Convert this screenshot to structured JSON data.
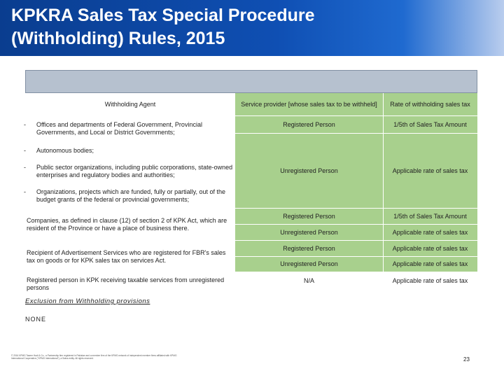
{
  "title": {
    "line1": "KPKRA Sales Tax Special Procedure",
    "line2": "(Withholding) Rules, 2015"
  },
  "table": {
    "headers": {
      "agent": "Withholding Agent",
      "provider": "Service provider [whose sales tax to be withheld]",
      "rate": "Rate of withholding sales tax"
    },
    "bullets": [
      "Offices and departments of Federal Government, Provincial Governments, and Local or District Governments;",
      "Autonomous bodies;",
      "Public sector organizations, including public corporations, state-owned enterprises and regulatory bodies and authorities;",
      "Organizations, projects which are funded, fully or partially, out of the budget grants of the federal or provincial governments;"
    ],
    "bullet_marker": "-",
    "group1": {
      "registered": "Registered Person",
      "registered_rate": "1/5th of Sales Tax Amount",
      "unregistered": "Unregistered Person",
      "unregistered_rate": "Applicable rate of sales tax"
    },
    "companies": {
      "agent": "Companies, as defined in clause (12) of section 2 of KPK Act, which are resident of the Province or have a place of business there.",
      "registered": "Registered Person",
      "registered_rate": "1/5th of Sales Tax Amount",
      "unregistered": "Unregistered Person",
      "unregistered_rate": "Applicable rate of sales tax"
    },
    "advertisement": {
      "agent": "Recipient of Advertisement Services who are registered for FBR's sales tax on goods or for KPK sales tax on services Act.",
      "registered": "Registered Person",
      "registered_rate": "Applicable rate of sales tax",
      "unregistered": "Unregistered Person",
      "unregistered_rate": "Applicable rate of sales tax"
    },
    "kpk_registered": {
      "agent": "Registered person in KPK receiving taxable services from unregistered persons",
      "provider": "N/A",
      "rate": "Applicable rate of sales tax"
    }
  },
  "exclusion": {
    "heading": "Exclusion from Withholding provisions",
    "value": "NONE"
  },
  "footer": {
    "legal": "© 2016 KPMG Taseer Hadi & Co., a Partnership firm registered in Pakistan and a member firm of the KPMG network of independent member firms affiliated with KPMG International Cooperative (\"KPMG International\"), a Swiss entity. All rights reserved."
  },
  "page_number": "23",
  "colors": {
    "header_blue": "#0f4fb3",
    "table_green": "#a8d08d",
    "band_grey": "#b6c1cf"
  }
}
